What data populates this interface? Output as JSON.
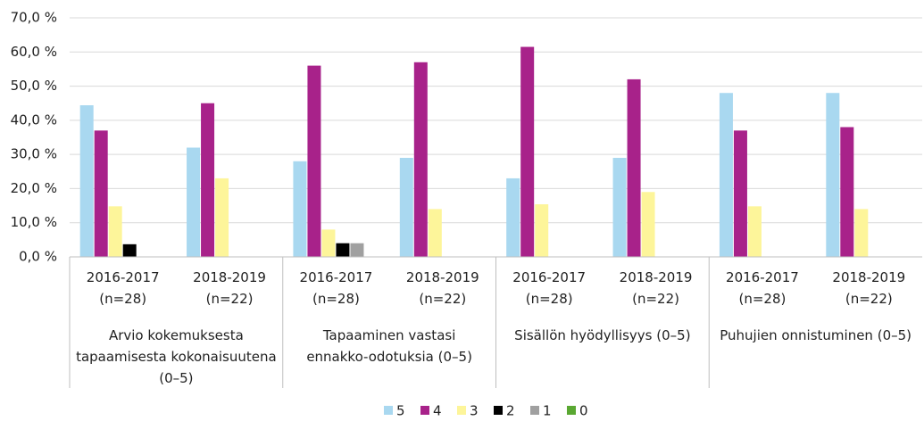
{
  "chart_data": {
    "type": "bar",
    "categories": [
      [
        "2016-2017",
        "(n=28)"
      ],
      [
        "2018-2019",
        "(n=22)"
      ],
      [
        "2016-2017",
        "(n=28)"
      ],
      [
        "2018-2019",
        "(n=22)"
      ],
      [
        "2016-2017",
        "(n=28)"
      ],
      [
        "2018-2019",
        "(n=22)"
      ],
      [
        "2016-2017",
        "(n=28)"
      ],
      [
        "2018-2019",
        "(n=22)"
      ]
    ],
    "groups": [
      {
        "label": [
          "Arvio kokemuksesta",
          "tapaamisesta kokonaisuutena",
          "(0–5)"
        ]
      },
      {
        "label": [
          "Tapaaminen vastasi",
          "ennakko-odotuksia (0–5)"
        ]
      },
      {
        "label": [
          "Sisällön hyödyllisyys (0–5)"
        ]
      },
      {
        "label": [
          "Puhujien onnistuminen (0–5)"
        ]
      }
    ],
    "series": [
      {
        "name": "5",
        "color": "#a9d8f0",
        "values": [
          44.4,
          32,
          28,
          29,
          23,
          29,
          48,
          48
        ]
      },
      {
        "name": "4",
        "color": "#a8228a",
        "values": [
          37,
          45,
          56,
          57,
          61.5,
          52,
          37,
          38
        ]
      },
      {
        "name": "3",
        "color": "#fdf59a",
        "values": [
          14.8,
          23,
          8,
          14,
          15.4,
          19,
          14.8,
          14
        ]
      },
      {
        "name": "2",
        "color": "#000000",
        "values": [
          3.7,
          0,
          4,
          0,
          0,
          0,
          0,
          0
        ]
      },
      {
        "name": "1",
        "color": "#a0a0a0",
        "values": [
          0,
          0,
          4,
          0,
          0,
          0,
          0,
          0
        ]
      },
      {
        "name": "0",
        "color": "#5aa832",
        "values": [
          0,
          0,
          0,
          0,
          0,
          0,
          0,
          0
        ]
      }
    ],
    "ylim": [
      0,
      70
    ],
    "yticks": [
      {
        "value": 0,
        "label": "0,0 %"
      },
      {
        "value": 10,
        "label": "10,0 %"
      },
      {
        "value": 20,
        "label": "20,0 %"
      },
      {
        "value": 30,
        "label": "30,0 %"
      },
      {
        "value": 40,
        "label": "40,0 %"
      },
      {
        "value": 50,
        "label": "50,0 %"
      },
      {
        "value": 60,
        "label": "60,0 %"
      },
      {
        "value": 70,
        "label": "70,0 %"
      }
    ],
    "grid": true,
    "legend": "bottom"
  }
}
